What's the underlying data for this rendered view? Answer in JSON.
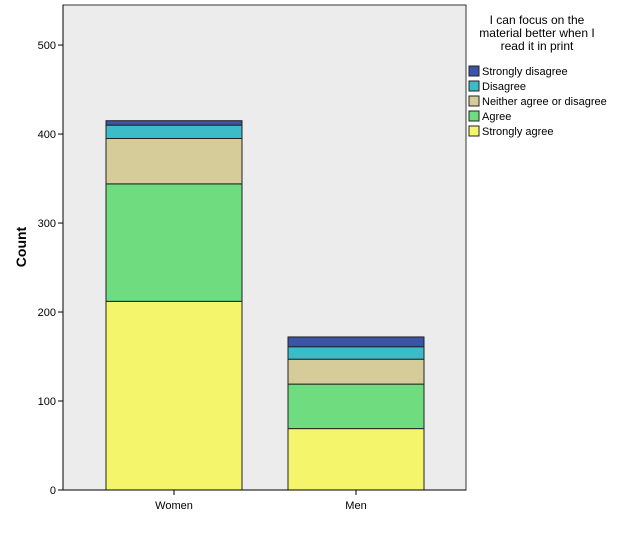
{
  "chart_data": {
    "type": "bar",
    "stacked": true,
    "categories": [
      "Women",
      "Men"
    ],
    "series": [
      {
        "name": "Strongly agree",
        "color": "#f5f56b",
        "values": [
          212,
          69
        ]
      },
      {
        "name": "Agree",
        "color": "#6fdc7f",
        "values": [
          132,
          50
        ]
      },
      {
        "name": "Neither agree or disagree",
        "color": "#d5cc9a",
        "values": [
          51,
          28
        ]
      },
      {
        "name": "Disagree",
        "color": "#3bbcc8",
        "values": [
          15,
          14
        ]
      },
      {
        "name": "Strongly disagree",
        "color": "#3b54a8",
        "values": [
          5,
          11
        ]
      }
    ],
    "ylabel": "Count",
    "xlabel": "",
    "ylim": [
      0,
      545
    ],
    "yticks": [
      0,
      100,
      200,
      300,
      400,
      500
    ],
    "legend": {
      "title_lines": [
        "I can focus on the",
        "material better when I",
        "read it in print"
      ],
      "placement": "right",
      "order": [
        "Strongly disagree",
        "Disagree",
        "Neither agree or disagree",
        "Agree",
        "Strongly agree"
      ]
    },
    "plot_background": "#ececec",
    "grid": false
  }
}
